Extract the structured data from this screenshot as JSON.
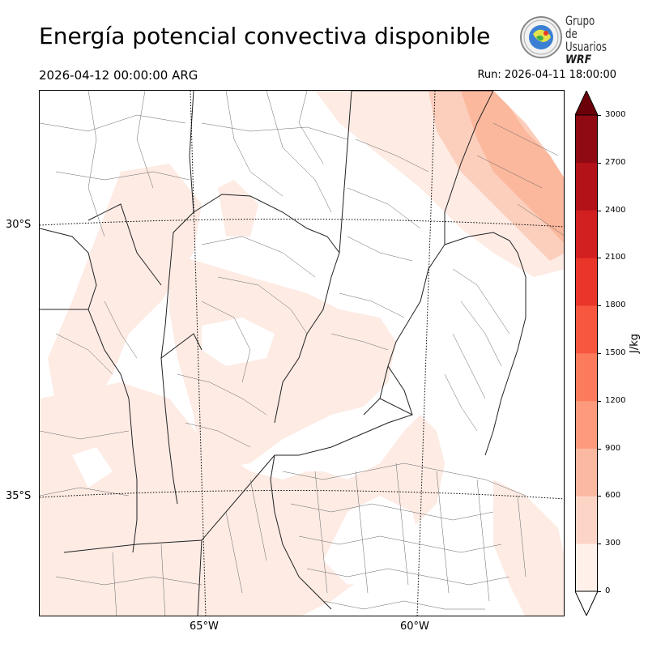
{
  "header": {
    "title": "Energía potencial convectiva disponible",
    "valid_time": "2026-04-12 00:00:00 ARG",
    "run_time": "Run: 2026-04-11 18:00:00"
  },
  "logo": {
    "line1": "Grupo de",
    "line2": "Usuarios",
    "line3": "WRF"
  },
  "map": {
    "lat_labels": [
      "30°S",
      "35°S"
    ],
    "lon_labels": [
      "65°W",
      "60°W"
    ]
  },
  "colorbar": {
    "unit": "J/kg",
    "ticks": [
      "0",
      "300",
      "600",
      "900",
      "1200",
      "1500",
      "1800",
      "2100",
      "2400",
      "2700",
      "3000"
    ],
    "colors": [
      "#fff0ea",
      "#fdd5c6",
      "#fcb9a1",
      "#fc9a7b",
      "#fb7b5c",
      "#f6573e",
      "#e9352a",
      "#d21f20",
      "#b31219",
      "#8f0a13",
      "#6b0009"
    ]
  }
}
